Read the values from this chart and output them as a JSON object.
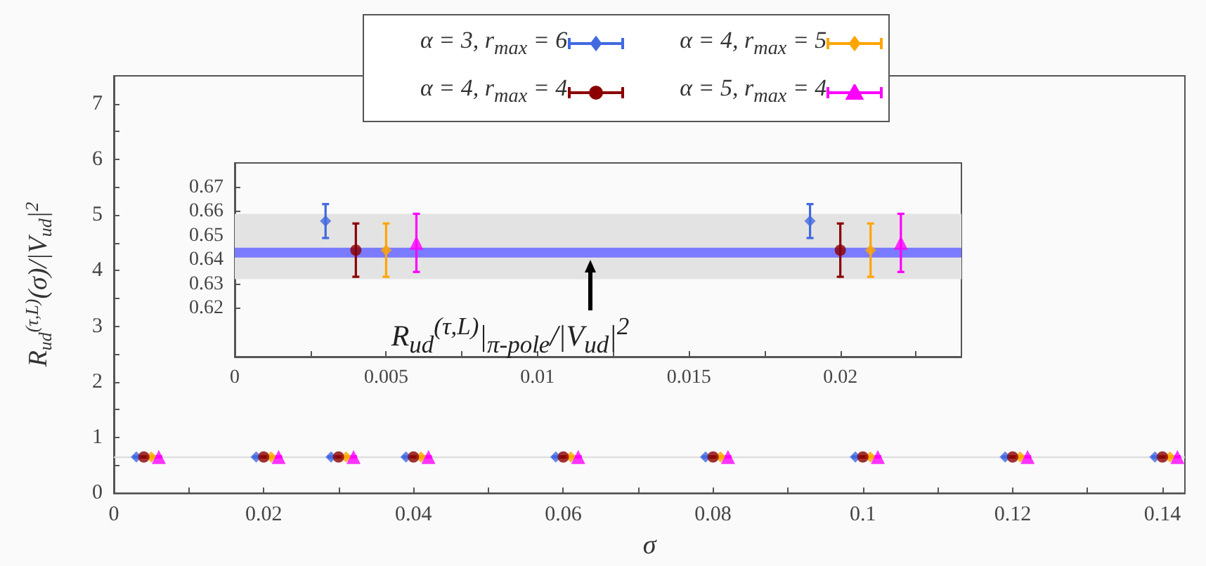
{
  "chart_data": [
    {
      "type": "scatter",
      "xlabel": "σ",
      "ylabel": "R$_{ud}$$^{(τ,L)}$(σ)/|V$_{ud}$|$^{2}$",
      "legend": "top",
      "grid": false,
      "xlim": [
        0,
        0.143
      ],
      "xticks": [
        0,
        {
          "value": 0.01,
          "label": null
        },
        0.02,
        {
          "value": 0.03,
          "label": null
        },
        0.04,
        {
          "value": 0.05,
          "label": null
        },
        0.06,
        {
          "value": 0.07,
          "label": null
        },
        0.08,
        {
          "value": 0.09,
          "label": null
        },
        0.1,
        {
          "value": 0.11,
          "label": null
        },
        0.12,
        {
          "value": 0.13,
          "label": null
        },
        0.14
      ],
      "ylim": [
        0,
        7.5
      ],
      "yticks": [
        0,
        {
          "value": 0.5,
          "label": null
        },
        1,
        {
          "value": 1.5,
          "label": null
        },
        2,
        {
          "value": 2.5,
          "label": null
        },
        3,
        {
          "value": 3.5,
          "label": null
        },
        4,
        {
          "value": 4.5,
          "label": null
        },
        5,
        {
          "value": 5.5,
          "label": null
        },
        6,
        {
          "value": 6.5,
          "label": null
        },
        7
      ],
      "bands": [
        {
          "axis": "y",
          "from": 0.632,
          "to": 0.659,
          "color": "#dddddd"
        }
      ],
      "series": [
        {
          "name": "α = 3, r$_{max}$ = 6",
          "color": "#4169e1",
          "marker": "diamond",
          "x": [
            0.003,
            0.019,
            0.029,
            0.039,
            0.059,
            0.079,
            0.099,
            0.119,
            0.139
          ],
          "values": [
            0.65,
            0.65,
            0.65,
            0.65,
            0.65,
            0.65,
            0.65,
            0.65,
            0.65
          ],
          "errors": [
            0.01,
            0.01,
            0.01,
            0.01,
            0.01,
            0.01,
            0.01,
            0.01,
            0.01
          ]
        },
        {
          "name": "α = 4, r$_{max}$ = 5",
          "color": "#ffa500",
          "marker": "diamond",
          "x": [
            0.005,
            0.021,
            0.031,
            0.041,
            0.061,
            0.081,
            0.101,
            0.121,
            0.141
          ],
          "values": [
            0.65,
            0.65,
            0.65,
            0.65,
            0.65,
            0.65,
            0.65,
            0.65,
            0.65
          ],
          "errors": [
            0.01,
            0.01,
            0.01,
            0.01,
            0.01,
            0.01,
            0.01,
            0.01,
            0.01
          ]
        },
        {
          "name": "α = 4, r$_{max}$ = 4",
          "color": "#8b0000",
          "marker": "circle",
          "x": [
            0.004,
            0.02,
            0.03,
            0.04,
            0.06,
            0.08,
            0.1,
            0.12,
            0.14
          ],
          "values": [
            0.65,
            0.65,
            0.65,
            0.65,
            0.65,
            0.65,
            0.65,
            0.65,
            0.65
          ],
          "errors": [
            0.01,
            0.01,
            0.01,
            0.01,
            0.01,
            0.01,
            0.01,
            0.01,
            0.01
          ]
        },
        {
          "name": "α = 5, r$_{max}$ = 4",
          "color": "#ff00ff",
          "marker": "triangle",
          "x": [
            0.006,
            0.022,
            0.032,
            0.042,
            0.062,
            0.082,
            0.102,
            0.122,
            0.142
          ],
          "values": [
            0.65,
            0.65,
            0.65,
            0.65,
            0.65,
            0.65,
            0.65,
            0.65,
            0.65
          ],
          "errors": [
            0.01,
            0.01,
            0.01,
            0.01,
            0.01,
            0.01,
            0.01,
            0.01,
            0.01
          ]
        }
      ]
    },
    {
      "type": "scatter",
      "grid": false,
      "xlim": [
        0,
        0.024
      ],
      "xticks": [
        0,
        {
          "value": 0.0025,
          "label": null
        },
        0.005,
        {
          "value": 0.0075,
          "label": null
        },
        0.01,
        {
          "value": 0.0125,
          "label": null
        },
        0.015,
        {
          "value": 0.0175,
          "label": null
        },
        0.02,
        {
          "value": 0.0225,
          "label": null
        }
      ],
      "ylim": [
        0.6,
        0.68
      ],
      "yticks": [
        0.62,
        0.63,
        0.64,
        0.65,
        0.66,
        0.67
      ],
      "bands": [
        {
          "axis": "y",
          "from": 0.632,
          "to": 0.659,
          "color": "#e3e3e3"
        }
      ],
      "ref_lines": [
        {
          "axis": "y",
          "value": 0.643,
          "color": "#7b7bff",
          "label": "R$_{ud}$$^{(τ,L)}$|$_{π-pole}$/|V$_{ud}$|$^{2}$"
        }
      ],
      "series": [
        {
          "color": "#4169e1",
          "marker": "diamond",
          "x": [
            0.003,
            0.019
          ],
          "values": [
            0.656,
            0.656
          ],
          "errors": [
            0.007,
            0.007
          ]
        },
        {
          "color": "#ffa500",
          "marker": "diamond",
          "x": [
            0.005,
            0.021
          ],
          "values": [
            0.644,
            0.644
          ],
          "errors": [
            0.011,
            0.011
          ]
        },
        {
          "color": "#8b0000",
          "marker": "circle",
          "x": [
            0.004,
            0.02
          ],
          "values": [
            0.644,
            0.644
          ],
          "errors": [
            0.011,
            0.011
          ]
        },
        {
          "color": "#ff00ff",
          "marker": "triangle",
          "x": [
            0.006,
            0.022
          ],
          "values": [
            0.647,
            0.647
          ],
          "errors": [
            0.012,
            0.012
          ]
        }
      ]
    }
  ]
}
